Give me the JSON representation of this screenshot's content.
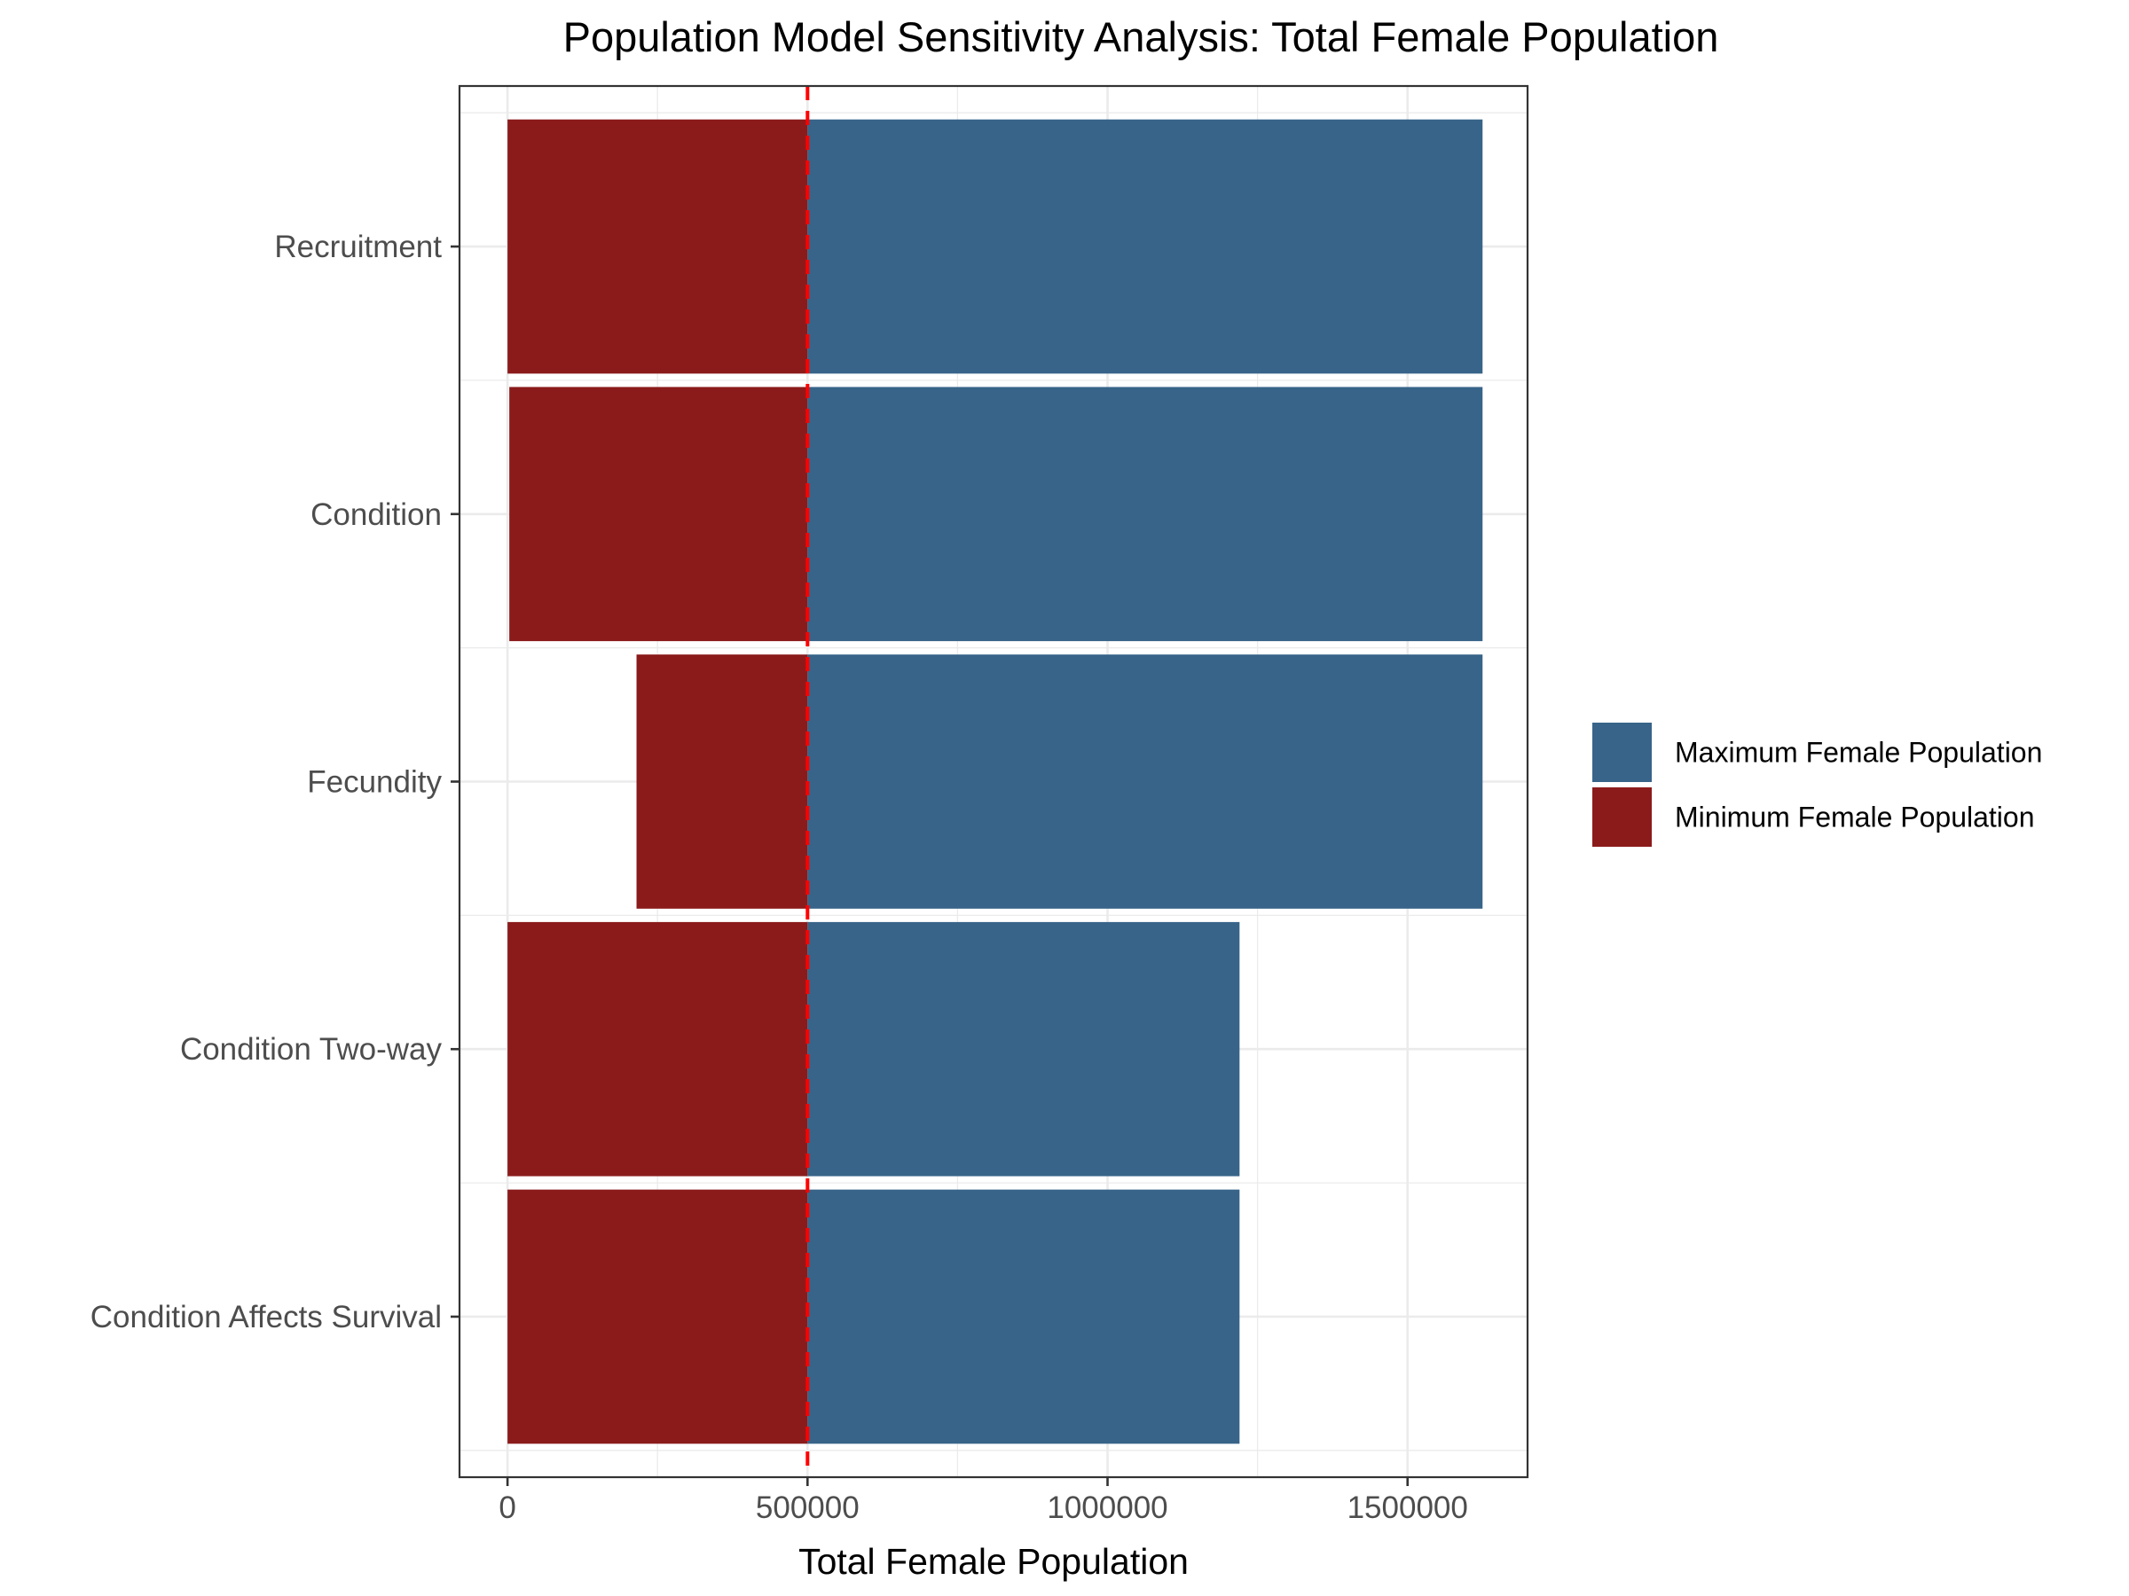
{
  "chart_data": {
    "type": "bar",
    "title": "Population Model Sensitivity Analysis: Total Female Population",
    "xlabel": "Total Female Population",
    "ylabel": "",
    "orientation": "horizontal",
    "categories": [
      "Recruitment",
      "Condition",
      "Fecundity",
      "Condition Two-way",
      "Condition Affects Survival"
    ],
    "baseline": 500000,
    "xlim": [
      -80000,
      1700000
    ],
    "x_ticks": [
      0,
      500000,
      1000000,
      1500000
    ],
    "x_tick_labels": [
      "0",
      "500000",
      "1000000",
      "1500000"
    ],
    "series": [
      {
        "name": "Maximum Female Population",
        "color": "#386489",
        "values": [
          1625000,
          1625000,
          1625000,
          1220000,
          1220000
        ]
      },
      {
        "name": "Minimum Female Population",
        "color": "#8b1b1b",
        "values": [
          0,
          3000,
          215000,
          0,
          0
        ]
      }
    ],
    "reference_line": {
      "value": 500000,
      "color": "#ff0000",
      "style": "dashed"
    },
    "grid": true,
    "legend_position": "right"
  }
}
